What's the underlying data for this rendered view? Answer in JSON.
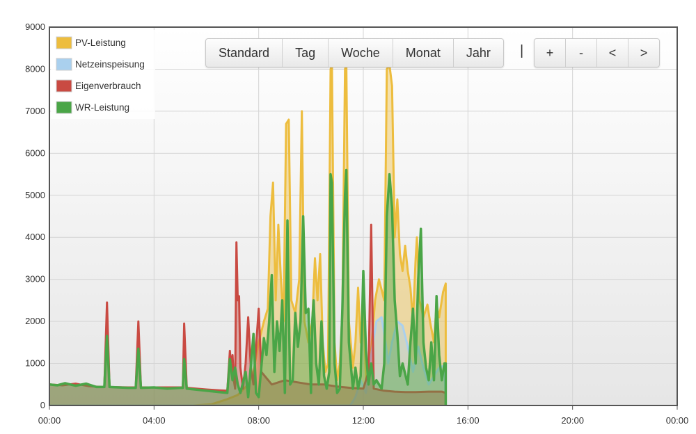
{
  "toolbar": {
    "range_buttons": [
      "Standard",
      "Tag",
      "Woche",
      "Monat",
      "Jahr"
    ],
    "separator": "|",
    "nav_buttons": [
      "+",
      "-",
      "<",
      ">"
    ]
  },
  "chart_data": {
    "type": "area",
    "title": "",
    "xlabel": "",
    "ylabel": "",
    "x_unit": "hours",
    "xlim": [
      0,
      24
    ],
    "ylim": [
      0,
      9000
    ],
    "grid": true,
    "legend_position": "top-left",
    "x_ticks": [
      "00:00",
      "04:00",
      "08:00",
      "12:00",
      "16:00",
      "20:00",
      "00:00"
    ],
    "y_ticks": [
      "0",
      "1000",
      "2000",
      "3000",
      "4000",
      "5000",
      "6000",
      "7000",
      "8000",
      "9000"
    ],
    "series": [
      {
        "name": "PV-Leistung",
        "color": "#edbd3e",
        "points": [
          [
            0,
            0
          ],
          [
            5.5,
            0
          ],
          [
            6.2,
            30
          ],
          [
            6.8,
            150
          ],
          [
            7.2,
            250
          ],
          [
            7.6,
            500
          ],
          [
            7.8,
            800
          ],
          [
            8.0,
            1500
          ],
          [
            8.2,
            2000
          ],
          [
            8.35,
            2300
          ],
          [
            8.45,
            4500
          ],
          [
            8.55,
            5300
          ],
          [
            8.65,
            2500
          ],
          [
            8.75,
            4300
          ],
          [
            8.85,
            3000
          ],
          [
            8.95,
            2000
          ],
          [
            9.05,
            6700
          ],
          [
            9.15,
            6800
          ],
          [
            9.25,
            2500
          ],
          [
            9.4,
            2200
          ],
          [
            9.55,
            3000
          ],
          [
            9.65,
            7000
          ],
          [
            9.75,
            2000
          ],
          [
            9.9,
            1500
          ],
          [
            10.05,
            2000
          ],
          [
            10.15,
            3500
          ],
          [
            10.25,
            2500
          ],
          [
            10.35,
            3600
          ],
          [
            10.45,
            1500
          ],
          [
            10.55,
            800
          ],
          [
            10.65,
            1000
          ],
          [
            10.75,
            8000
          ],
          [
            10.8,
            8100
          ],
          [
            10.9,
            1500
          ],
          [
            11.0,
            600
          ],
          [
            11.1,
            1000
          ],
          [
            11.2,
            2200
          ],
          [
            11.3,
            8000
          ],
          [
            11.35,
            8100
          ],
          [
            11.45,
            2000
          ],
          [
            11.6,
            900
          ],
          [
            11.7,
            1500
          ],
          [
            11.8,
            2800
          ],
          [
            11.9,
            1500
          ],
          [
            12.0,
            2600
          ],
          [
            12.1,
            600
          ],
          [
            12.25,
            900
          ],
          [
            12.45,
            2500
          ],
          [
            12.6,
            3000
          ],
          [
            12.8,
            2500
          ],
          [
            12.9,
            8000
          ],
          [
            13.0,
            8100
          ],
          [
            13.1,
            7600
          ],
          [
            13.2,
            4000
          ],
          [
            13.3,
            4900
          ],
          [
            13.4,
            3600
          ],
          [
            13.5,
            3200
          ],
          [
            13.6,
            3800
          ],
          [
            13.7,
            3200
          ],
          [
            13.8,
            2800
          ],
          [
            13.9,
            2000
          ],
          [
            14.0,
            3500
          ],
          [
            14.05,
            4000
          ],
          [
            14.15,
            2500
          ],
          [
            14.3,
            2100
          ],
          [
            14.45,
            2400
          ],
          [
            14.55,
            2000
          ],
          [
            14.7,
            1500
          ],
          [
            14.8,
            2400
          ],
          [
            14.9,
            2100
          ],
          [
            15.05,
            2700
          ],
          [
            15.15,
            2900
          ],
          [
            15.15,
            0
          ]
        ]
      },
      {
        "name": "Netzeinspeisung",
        "color": "#aad0ee",
        "points": [
          [
            0,
            0
          ],
          [
            11.5,
            0
          ],
          [
            11.7,
            200
          ],
          [
            11.9,
            600
          ],
          [
            12.1,
            300
          ],
          [
            12.3,
            1200
          ],
          [
            12.5,
            2000
          ],
          [
            12.7,
            2100
          ],
          [
            12.85,
            1500
          ],
          [
            12.95,
            1000
          ],
          [
            13.1,
            1500
          ],
          [
            13.3,
            2000
          ],
          [
            13.5,
            1900
          ],
          [
            13.7,
            1400
          ],
          [
            13.9,
            800
          ],
          [
            14.1,
            1400
          ],
          [
            14.3,
            900
          ],
          [
            14.5,
            500
          ],
          [
            14.7,
            700
          ],
          [
            14.9,
            900
          ],
          [
            15.1,
            950
          ],
          [
            15.15,
            0
          ]
        ]
      },
      {
        "name": "Eigenverbrauch",
        "color": "#c94a42",
        "points": [
          [
            0,
            500
          ],
          [
            0.5,
            480
          ],
          [
            1.0,
            520
          ],
          [
            1.5,
            460
          ],
          [
            2.0,
            440
          ],
          [
            2.1,
            440
          ],
          [
            2.2,
            2450
          ],
          [
            2.3,
            440
          ],
          [
            3.0,
            430
          ],
          [
            3.3,
            430
          ],
          [
            3.4,
            2000
          ],
          [
            3.5,
            430
          ],
          [
            4.0,
            430
          ],
          [
            4.5,
            430
          ],
          [
            5.0,
            430
          ],
          [
            5.1,
            430
          ],
          [
            5.15,
            1950
          ],
          [
            5.25,
            420
          ],
          [
            6.0,
            380
          ],
          [
            6.5,
            360
          ],
          [
            6.8,
            350
          ],
          [
            6.9,
            1300
          ],
          [
            6.95,
            900
          ],
          [
            7.0,
            1200
          ],
          [
            7.05,
            600
          ],
          [
            7.1,
            400
          ],
          [
            7.15,
            3880
          ],
          [
            7.2,
            2500
          ],
          [
            7.25,
            2600
          ],
          [
            7.3,
            900
          ],
          [
            7.4,
            400
          ],
          [
            7.5,
            1000
          ],
          [
            7.6,
            2100
          ],
          [
            7.7,
            900
          ],
          [
            7.8,
            500
          ],
          [
            7.9,
            1400
          ],
          [
            8.0,
            2300
          ],
          [
            8.1,
            800
          ],
          [
            8.5,
            500
          ],
          [
            9.0,
            600
          ],
          [
            9.5,
            550
          ],
          [
            10.0,
            500
          ],
          [
            10.5,
            500
          ],
          [
            11.0,
            450
          ],
          [
            11.5,
            420
          ],
          [
            12.0,
            400
          ],
          [
            12.2,
            800
          ],
          [
            12.3,
            4300
          ],
          [
            12.4,
            400
          ],
          [
            12.8,
            350
          ],
          [
            13.2,
            330
          ],
          [
            13.6,
            320
          ],
          [
            14.0,
            320
          ],
          [
            14.5,
            330
          ],
          [
            15.0,
            330
          ],
          [
            15.15,
            300
          ],
          [
            15.15,
            0
          ]
        ]
      },
      {
        "name": "WR-Leistung",
        "color": "#4aa547",
        "points": [
          [
            0,
            500
          ],
          [
            0.3,
            480
          ],
          [
            0.6,
            530
          ],
          [
            1.0,
            470
          ],
          [
            1.4,
            520
          ],
          [
            1.8,
            440
          ],
          [
            2.1,
            440
          ],
          [
            2.2,
            1650
          ],
          [
            2.3,
            440
          ],
          [
            3.0,
            420
          ],
          [
            3.3,
            420
          ],
          [
            3.4,
            1350
          ],
          [
            3.5,
            420
          ],
          [
            4.0,
            430
          ],
          [
            4.5,
            400
          ],
          [
            5.0,
            420
          ],
          [
            5.1,
            420
          ],
          [
            5.15,
            1100
          ],
          [
            5.25,
            400
          ],
          [
            6.0,
            350
          ],
          [
            6.5,
            320
          ],
          [
            6.8,
            300
          ],
          [
            6.9,
            1100
          ],
          [
            7.0,
            600
          ],
          [
            7.1,
            900
          ],
          [
            7.2,
            500
          ],
          [
            7.3,
            300
          ],
          [
            7.5,
            800
          ],
          [
            7.6,
            200
          ],
          [
            7.8,
            1700
          ],
          [
            7.9,
            300
          ],
          [
            8.0,
            200
          ],
          [
            8.1,
            900
          ],
          [
            8.2,
            1600
          ],
          [
            8.3,
            1200
          ],
          [
            8.4,
            2000
          ],
          [
            8.5,
            3100
          ],
          [
            8.6,
            800
          ],
          [
            8.7,
            2000
          ],
          [
            8.8,
            1300
          ],
          [
            8.9,
            2500
          ],
          [
            9.0,
            300
          ],
          [
            9.1,
            4400
          ],
          [
            9.2,
            500
          ],
          [
            9.3,
            600
          ],
          [
            9.4,
            2200
          ],
          [
            9.5,
            1400
          ],
          [
            9.6,
            2000
          ],
          [
            9.7,
            4500
          ],
          [
            9.8,
            2200
          ],
          [
            9.9,
            2300
          ],
          [
            10.0,
            300
          ],
          [
            10.05,
            2000
          ],
          [
            10.1,
            2500
          ],
          [
            10.2,
            1000
          ],
          [
            10.3,
            500
          ],
          [
            10.4,
            2000
          ],
          [
            10.5,
            700
          ],
          [
            10.6,
            400
          ],
          [
            10.7,
            800
          ],
          [
            10.75,
            5500
          ],
          [
            10.8,
            5300
          ],
          [
            10.9,
            1000
          ],
          [
            11.0,
            300
          ],
          [
            11.1,
            400
          ],
          [
            11.2,
            2300
          ],
          [
            11.3,
            5000
          ],
          [
            11.35,
            5600
          ],
          [
            11.45,
            1500
          ],
          [
            11.6,
            400
          ],
          [
            11.7,
            900
          ],
          [
            11.8,
            400
          ],
          [
            11.9,
            700
          ],
          [
            12.0,
            3200
          ],
          [
            12.1,
            1300
          ],
          [
            12.2,
            500
          ],
          [
            12.3,
            1000
          ],
          [
            12.4,
            500
          ],
          [
            12.5,
            600
          ],
          [
            12.7,
            400
          ],
          [
            12.8,
            1000
          ],
          [
            12.9,
            4500
          ],
          [
            13.0,
            5500
          ],
          [
            13.1,
            4700
          ],
          [
            13.2,
            2500
          ],
          [
            13.3,
            1700
          ],
          [
            13.4,
            700
          ],
          [
            13.5,
            1000
          ],
          [
            13.7,
            500
          ],
          [
            13.8,
            1500
          ],
          [
            13.9,
            2300
          ],
          [
            14.0,
            1000
          ],
          [
            14.1,
            3000
          ],
          [
            14.2,
            4200
          ],
          [
            14.3,
            1500
          ],
          [
            14.4,
            900
          ],
          [
            14.5,
            600
          ],
          [
            14.6,
            1500
          ],
          [
            14.7,
            600
          ],
          [
            14.8,
            2600
          ],
          [
            14.9,
            1200
          ],
          [
            15.0,
            600
          ],
          [
            15.1,
            1000
          ],
          [
            15.15,
            1000
          ],
          [
            15.15,
            0
          ]
        ]
      }
    ]
  }
}
